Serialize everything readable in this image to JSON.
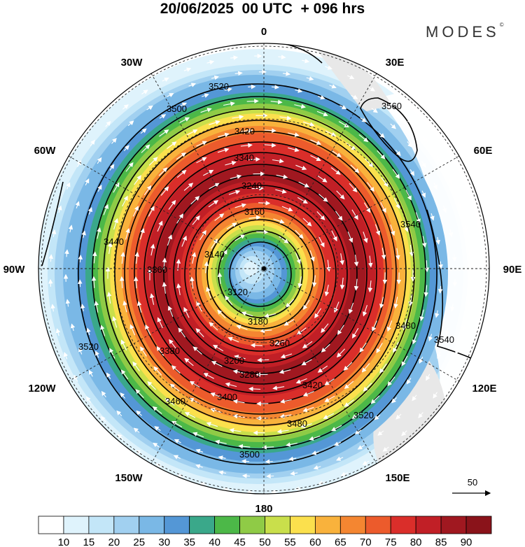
{
  "header": {
    "title": "20/06/2025  00 UTC  + 096 hrs",
    "brand": "MODES",
    "brand_mark": "©"
  },
  "map": {
    "projection": "south-polar-stereographic",
    "longitude_labels": [
      "0",
      "30E",
      "60E",
      "90E",
      "120E",
      "150E",
      "180",
      "150W",
      "120W",
      "90W",
      "60W",
      "30W"
    ],
    "contour_labels": [
      "3520",
      "3500",
      "3420",
      "3340",
      "3240",
      "3160",
      "3140",
      "3120",
      "3180",
      "3200",
      "3280",
      "3260",
      "3380",
      "3400",
      "3460",
      "3480",
      "3500",
      "3520",
      "3540",
      "3560",
      "3520",
      "3540",
      "3440",
      "3360",
      "3420",
      "3480"
    ],
    "reference_vector_label": "50",
    "colors": {
      "land": "#e8e8e8",
      "contour": "#000000",
      "vector": "#ffffff"
    }
  },
  "colorbar": {
    "ticks": [
      "10",
      "15",
      "20",
      "25",
      "30",
      "35",
      "40",
      "45",
      "50",
      "55",
      "60",
      "65",
      "70",
      "75",
      "80",
      "85",
      "90"
    ],
    "colors": [
      "#ffffff",
      "#dff3fc",
      "#c3e6f8",
      "#a1d0f0",
      "#7ab8e6",
      "#5497d6",
      "#3aa88a",
      "#4cb848",
      "#8fcb46",
      "#c9df4b",
      "#fbe04d",
      "#f9b23c",
      "#f48631",
      "#ec5b2c",
      "#da2e2a",
      "#c11f26",
      "#a01820",
      "#8a131a"
    ]
  }
}
